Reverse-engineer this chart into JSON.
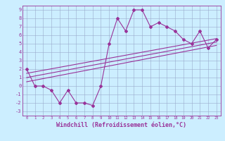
{
  "x": [
    0,
    1,
    2,
    3,
    4,
    5,
    6,
    7,
    8,
    9,
    10,
    11,
    12,
    13,
    14,
    15,
    16,
    17,
    18,
    19,
    20,
    21,
    22,
    23
  ],
  "y_main": [
    2,
    0,
    0,
    -0.5,
    -2,
    -0.5,
    -2,
    -2,
    -2.3,
    0,
    5,
    8,
    6.5,
    9,
    9,
    7,
    7.5,
    7,
    6.5,
    5.5,
    5,
    6.5,
    4.5,
    5.5
  ],
  "trend1_x": [
    0,
    23
  ],
  "trend1_y": [
    0.5,
    4.8
  ],
  "trend2_x": [
    0,
    23
  ],
  "trend2_y": [
    1.0,
    5.2
  ],
  "trend3_x": [
    0,
    23
  ],
  "trend3_y": [
    1.5,
    5.6
  ],
  "line_color": "#993399",
  "bg_color": "#cceeff",
  "grid_color": "#99aacc",
  "xlabel": "Windchill (Refroidissement éolien,°C)",
  "xlim": [
    -0.5,
    23.5
  ],
  "ylim": [
    -3.5,
    9.5
  ],
  "xticks": [
    0,
    1,
    2,
    3,
    4,
    5,
    6,
    7,
    8,
    9,
    10,
    11,
    12,
    13,
    14,
    15,
    16,
    17,
    18,
    19,
    20,
    21,
    22,
    23
  ],
  "yticks": [
    -3,
    -2,
    -1,
    0,
    1,
    2,
    3,
    4,
    5,
    6,
    7,
    8,
    9
  ],
  "marker": "D",
  "markersize": 2.0,
  "linewidth": 0.8
}
